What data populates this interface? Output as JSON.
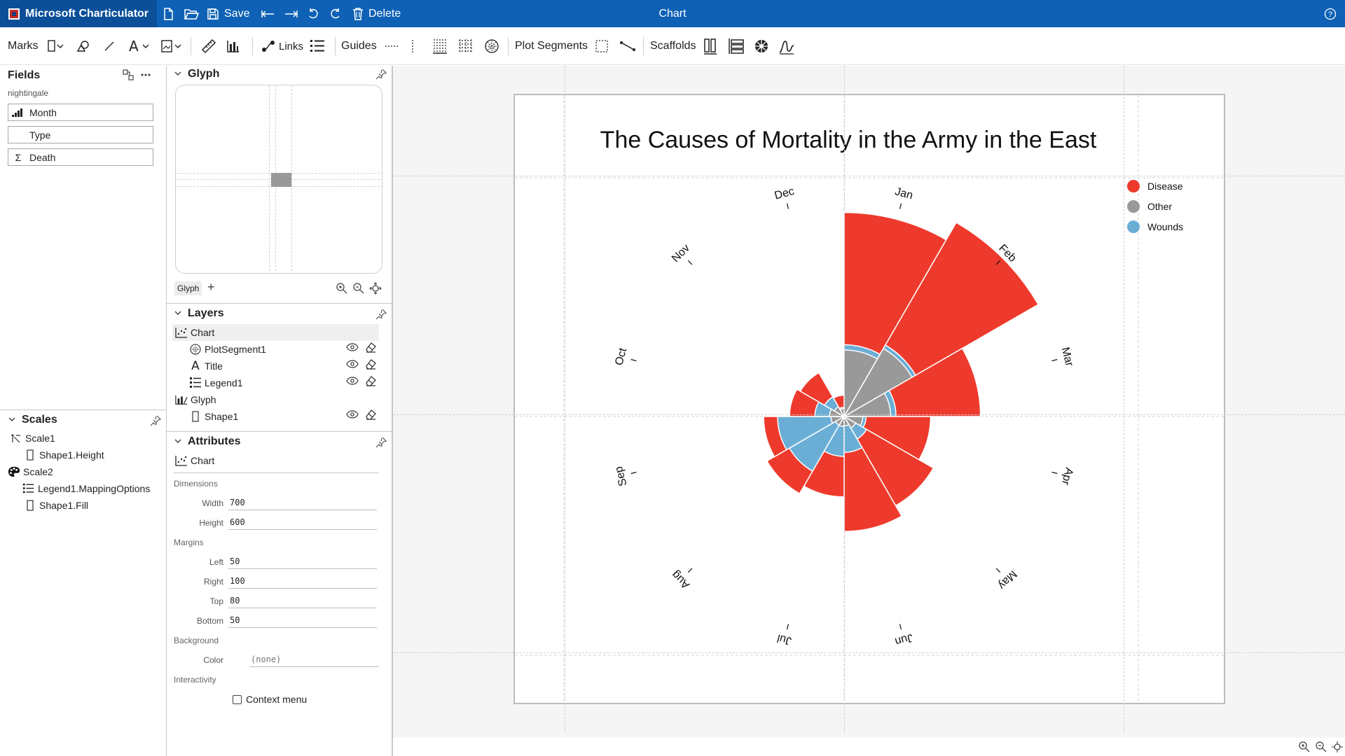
{
  "titlebar": {
    "app_name": "Microsoft Charticulator",
    "save_label": "Save",
    "delete_label": "Delete",
    "document_title": "Chart",
    "help_icon": "help-icon"
  },
  "toolbar": {
    "marks_label": "Marks",
    "links_label": "Links",
    "guides_label": "Guides",
    "plot_segments_label": "Plot Segments",
    "scaffolds_label": "Scaffolds"
  },
  "fields_panel": {
    "title": "Fields",
    "dataset": "nightingale",
    "fields": [
      {
        "name": "Month",
        "icon": "ordinal-icon"
      },
      {
        "name": "Type",
        "icon": "none"
      },
      {
        "name": "Death",
        "icon": "sum-icon",
        "icon_text": "Σ"
      }
    ]
  },
  "scales_panel": {
    "title": "Scales",
    "items": [
      {
        "label": "Scale1",
        "level": 0
      },
      {
        "label": "Shape1.Height",
        "level": 1
      },
      {
        "label": "Scale2",
        "level": 0
      },
      {
        "label": "Legend1.MappingOptions",
        "level": 1
      },
      {
        "label": "Shape1.Fill",
        "level": 1
      }
    ]
  },
  "glyph_panel": {
    "title": "Glyph",
    "tab_label": "Glyph",
    "add_symbol": "+"
  },
  "layers_panel": {
    "title": "Layers",
    "items": [
      {
        "label": "Chart"
      },
      {
        "label": "PlotSegment1"
      },
      {
        "label": "Title",
        "icon_text": "A"
      },
      {
        "label": "Legend1"
      },
      {
        "label": "Glyph"
      },
      {
        "label": "Shape1"
      }
    ]
  },
  "attributes_panel": {
    "title": "Attributes",
    "object": "Chart",
    "dimensions_label": "Dimensions",
    "width_label": "Width",
    "width_value": "700",
    "height_label": "Height",
    "height_value": "600",
    "margins_label": "Margins",
    "left_label": "Left",
    "left_value": "50",
    "right_label": "Right",
    "right_value": "100",
    "top_label": "Top",
    "top_value": "80",
    "bottom_label": "Bottom",
    "bottom_value": "50",
    "background_label": "Background",
    "color_label": "Color",
    "color_value": "(none)",
    "interactivity_label": "Interactivity",
    "context_menu_label": "Context menu",
    "context_menu_checked": false
  },
  "chart_data": {
    "type": "polar-area",
    "title": "The Causes of Mortality in the Army in the East",
    "categories": [
      "Jan",
      "Feb",
      "Mar",
      "Apr",
      "May",
      "Jun",
      "Jul",
      "Aug",
      "Sep",
      "Oct",
      "Nov",
      "Dec"
    ],
    "series": [
      {
        "name": "Disease",
        "color": "#ee3a2c",
        "values": [
          307,
          337,
          205,
          130,
          155,
          173,
          121,
          134,
          121,
          82,
          76,
          32
        ]
      },
      {
        "name": "Other",
        "color": "#999999",
        "values": [
          100,
          118,
          70,
          28,
          20,
          14,
          15,
          15,
          20,
          22,
          17,
          12
        ]
      },
      {
        "name": "Wounds",
        "color": "#6aaed6",
        "values": [
          108,
          124,
          78,
          33,
          39,
          54,
          60,
          95,
          100,
          44,
          34,
          14
        ]
      }
    ],
    "legend_placement": "top-right",
    "value_scale": "radius"
  }
}
